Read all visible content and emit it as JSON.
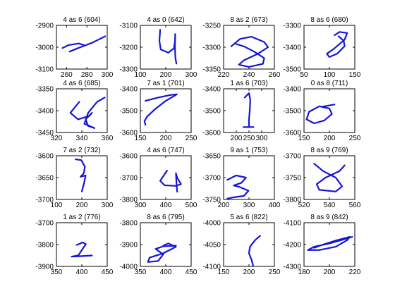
{
  "chart_data": [
    {
      "type": "line",
      "title": "4 as 6 (604)",
      "xlim": [
        250,
        300
      ],
      "ylim": [
        -3100,
        -2900
      ],
      "xticks": [
        260,
        280,
        300
      ],
      "yticks": [
        -2900,
        -3000,
        -3100
      ],
      "stroke": [
        [
          256,
          -3004
        ],
        [
          262,
          -2990
        ],
        [
          272,
          -2983
        ],
        [
          278,
          -2992
        ],
        [
          268,
          -3010
        ],
        [
          263,
          -3020
        ],
        [
          272,
          -3003
        ],
        [
          285,
          -2980
        ],
        [
          298,
          -2950
        ]
      ],
      "color": "#1515d6"
    },
    {
      "type": "line",
      "title": "4 as 0 (642)",
      "xlim": [
        100,
        300
      ],
      "ylim": [
        -3300,
        -3100
      ],
      "xticks": [
        100,
        200,
        300
      ],
      "yticks": [
        -3100,
        -3200,
        -3300
      ],
      "stroke": [
        [
          178,
          -3120
        ],
        [
          175,
          -3170
        ],
        [
          180,
          -3210
        ],
        [
          210,
          -3225
        ],
        [
          232,
          -3205
        ],
        [
          237,
          -3170
        ],
        [
          237,
          -3140
        ],
        [
          236,
          -3200
        ],
        [
          238,
          -3250
        ],
        [
          242,
          -3275
        ]
      ],
      "color": "#1515d6"
    },
    {
      "type": "line",
      "title": "8 as 2 (673)",
      "xlim": [
        220,
        260
      ],
      "ylim": [
        -3350,
        -3250
      ],
      "xticks": [
        220,
        240,
        260
      ],
      "yticks": [
        -3250,
        -3300,
        -3350
      ],
      "stroke": [
        [
          226,
          -3298
        ],
        [
          233,
          -3281
        ],
        [
          242,
          -3276
        ],
        [
          252,
          -3288
        ],
        [
          255,
          -3300
        ],
        [
          247,
          -3315
        ],
        [
          236,
          -3330
        ],
        [
          232,
          -3340
        ],
        [
          240,
          -3345
        ],
        [
          251,
          -3338
        ],
        [
          252,
          -3325
        ],
        [
          244,
          -3310
        ],
        [
          236,
          -3298
        ],
        [
          229,
          -3292
        ]
      ],
      "color": "#1515d6"
    },
    {
      "type": "line",
      "title": "8 as 6 (680)",
      "xlim": [
        50,
        150
      ],
      "ylim": [
        -3500,
        -3300
      ],
      "xticks": [
        50,
        100,
        150
      ],
      "yticks": [
        -3300,
        -3400,
        -3500
      ],
      "stroke": [
        [
          110,
          -3345
        ],
        [
          120,
          -3330
        ],
        [
          135,
          -3335
        ],
        [
          130,
          -3365
        ],
        [
          110,
          -3405
        ],
        [
          95,
          -3430
        ],
        [
          100,
          -3445
        ],
        [
          115,
          -3430
        ],
        [
          130,
          -3395
        ],
        [
          128,
          -3370
        ],
        [
          118,
          -3350
        ]
      ],
      "color": "#1515d6"
    },
    {
      "type": "line",
      "title": "4 as 6 (685)",
      "xlim": [
        320,
        360
      ],
      "ylim": [
        -3450,
        -3350
      ],
      "xticks": [
        320,
        340,
        360
      ],
      "yticks": [
        -3350,
        -3400,
        -3450
      ],
      "stroke": [
        [
          338,
          -3380
        ],
        [
          331,
          -3405
        ],
        [
          337,
          -3420
        ],
        [
          346,
          -3412
        ],
        [
          348,
          -3405
        ],
        [
          343,
          -3420
        ],
        [
          345,
          -3435
        ],
        [
          350,
          -3440
        ],
        [
          342,
          -3430
        ],
        [
          345,
          -3405
        ],
        [
          352,
          -3380
        ],
        [
          358,
          -3370
        ]
      ],
      "color": "#1515d6"
    },
    {
      "type": "line",
      "title": "7 as 1 (701)",
      "xlim": [
        150,
        250
      ],
      "ylim": [
        -3600,
        -3400
      ],
      "xticks": [
        150,
        200,
        250
      ],
      "yticks": [
        -3400,
        -3500,
        -3600
      ],
      "stroke": [
        [
          160,
          -3455
        ],
        [
          185,
          -3440
        ],
        [
          210,
          -3428
        ],
        [
          222,
          -3425
        ],
        [
          200,
          -3455
        ],
        [
          178,
          -3495
        ],
        [
          163,
          -3528
        ],
        [
          158,
          -3548
        ],
        [
          160,
          -3565
        ]
      ],
      "color": "#1515d6"
    },
    {
      "type": "line",
      "title": "1 as 6 (703)",
      "xlim": [
        150,
        350
      ],
      "ylim": [
        -3600,
        -3400
      ],
      "xticks": [
        200,
        250,
        300
      ],
      "yticks": [
        -3400,
        -3500,
        -3600
      ],
      "stroke": [
        [
          233,
          -3440
        ],
        [
          250,
          -3420
        ],
        [
          255,
          -3450
        ],
        [
          253,
          -3500
        ],
        [
          250,
          -3540
        ],
        [
          250,
          -3575
        ],
        [
          228,
          -3575
        ],
        [
          268,
          -3575
        ]
      ],
      "color": "#1515d6"
    },
    {
      "type": "line",
      "title": "0 as 8 (711)",
      "xlim": [
        150,
        250
      ],
      "ylim": [
        -3600,
        -3400
      ],
      "xticks": [
        150,
        200,
        250
      ],
      "yticks": [
        -3400,
        -3500,
        -3600
      ],
      "stroke": [
        [
          195,
          -3488
        ],
        [
          180,
          -3480
        ],
        [
          160,
          -3505
        ],
        [
          155,
          -3540
        ],
        [
          170,
          -3558
        ],
        [
          190,
          -3545
        ],
        [
          205,
          -3515
        ],
        [
          200,
          -3490
        ],
        [
          185,
          -3482
        ],
        [
          210,
          -3472
        ]
      ],
      "color": "#1515d6"
    },
    {
      "type": "line",
      "title": "7 as 2 (732)",
      "xlim": [
        100,
        300
      ],
      "ylim": [
        -3700,
        -3600
      ],
      "xticks": [
        100,
        200,
        300
      ],
      "yticks": [
        -3600,
        -3650,
        -3700
      ],
      "stroke": [
        [
          175,
          -3608
        ],
        [
          198,
          -3610
        ],
        [
          212,
          -3625
        ],
        [
          208,
          -3640
        ],
        [
          195,
          -3648
        ],
        [
          215,
          -3645
        ],
        [
          210,
          -3660
        ],
        [
          200,
          -3682
        ]
      ],
      "color": "#1515d6"
    },
    {
      "type": "line",
      "title": "4 as 6 (747)",
      "xlim": [
        300,
        500
      ],
      "ylim": [
        -3800,
        -3600
      ],
      "xticks": [
        300,
        400,
        500
      ],
      "yticks": [
        -3600,
        -3700,
        -3800
      ],
      "stroke": [
        [
          405,
          -3668
        ],
        [
          378,
          -3715
        ],
        [
          395,
          -3735
        ],
        [
          440,
          -3738
        ],
        [
          460,
          -3730
        ],
        [
          445,
          -3700
        ],
        [
          440,
          -3680
        ],
        [
          442,
          -3720
        ],
        [
          445,
          -3765
        ]
      ],
      "color": "#1515d6"
    },
    {
      "type": "line",
      "title": "9 as 1 (753)",
      "xlim": [
        200,
        400
      ],
      "ylim": [
        -3750,
        -3650
      ],
      "xticks": [
        200,
        300,
        400
      ],
      "yticks": [
        -3650,
        -3700,
        -3750
      ],
      "stroke": [
        [
          215,
          -3705
        ],
        [
          250,
          -3695
        ],
        [
          288,
          -3700
        ],
        [
          270,
          -3712
        ],
        [
          240,
          -3718
        ],
        [
          265,
          -3722
        ],
        [
          298,
          -3730
        ],
        [
          280,
          -3742
        ],
        [
          240,
          -3745
        ],
        [
          215,
          -3748
        ]
      ],
      "color": "#1515d6"
    },
    {
      "type": "line",
      "title": "8 as 9 (769)",
      "xlim": [
        520,
        560
      ],
      "ylim": [
        -3800,
        -3700
      ],
      "xticks": [
        520,
        540,
        560
      ],
      "yticks": [
        -3700,
        -3750,
        -3800
      ],
      "stroke": [
        [
          528,
          -3718
        ],
        [
          535,
          -3735
        ],
        [
          545,
          -3750
        ],
        [
          550,
          -3770
        ],
        [
          545,
          -3782
        ],
        [
          532,
          -3778
        ],
        [
          530,
          -3765
        ],
        [
          537,
          -3750
        ],
        [
          548,
          -3735
        ],
        [
          552,
          -3722
        ]
      ],
      "color": "#1515d6"
    },
    {
      "type": "line",
      "title": "1 as 2 (776)",
      "xlim": [
        350,
        450
      ],
      "ylim": [
        -3900,
        -3700
      ],
      "xticks": [
        350,
        400,
        450
      ],
      "yticks": [
        -3700,
        -3800,
        -3900
      ],
      "stroke": [
        [
          390,
          -3802
        ],
        [
          402,
          -3790
        ],
        [
          408,
          -3798
        ],
        [
          400,
          -3825
        ],
        [
          393,
          -3850
        ],
        [
          380,
          -3855
        ],
        [
          400,
          -3853
        ],
        [
          420,
          -3850
        ]
      ],
      "color": "#1515d6"
    },
    {
      "type": "line",
      "title": "8 as 6 (795)",
      "xlim": [
        350,
        450
      ],
      "ylim": [
        -4000,
        -3800
      ],
      "xticks": [
        350,
        400,
        450
      ],
      "yticks": [
        -3800,
        -3900,
        -4000
      ],
      "stroke": [
        [
          420,
          -3905
        ],
        [
          395,
          -3908
        ],
        [
          380,
          -3920
        ],
        [
          395,
          -3945
        ],
        [
          385,
          -3975
        ],
        [
          365,
          -3980
        ],
        [
          368,
          -3960
        ],
        [
          395,
          -3940
        ],
        [
          420,
          -3910
        ],
        [
          405,
          -3895
        ],
        [
          395,
          -3905
        ]
      ],
      "color": "#1515d6"
    },
    {
      "type": "line",
      "title": "5 as 6 (822)",
      "xlim": [
        150,
        250
      ],
      "ylim": [
        -4100,
        -4000
      ],
      "xticks": [
        150,
        200,
        250
      ],
      "yticks": [
        -4000,
        -4050,
        -4100
      ],
      "stroke": [
        [
          222,
          -4030
        ],
        [
          212,
          -4040
        ],
        [
          202,
          -4055
        ],
        [
          200,
          -4070
        ],
        [
          205,
          -4085
        ],
        [
          208,
          -4098
        ]
      ],
      "color": "#1515d6"
    },
    {
      "type": "line",
      "title": "8 as 9 (842)",
      "xlim": [
        180,
        220
      ],
      "ylim": [
        -4300,
        -4100
      ],
      "xticks": [
        180,
        200,
        220
      ],
      "yticks": [
        -4100,
        -4200,
        -4300
      ],
      "stroke": [
        [
          218,
          -4165
        ],
        [
          212,
          -4175
        ],
        [
          200,
          -4195
        ],
        [
          188,
          -4210
        ],
        [
          183,
          -4225
        ],
        [
          192,
          -4225
        ],
        [
          205,
          -4210
        ],
        [
          214,
          -4180
        ],
        [
          216,
          -4165
        ],
        [
          206,
          -4180
        ],
        [
          195,
          -4200
        ],
        [
          188,
          -4215
        ]
      ],
      "color": "#1515d6"
    }
  ]
}
